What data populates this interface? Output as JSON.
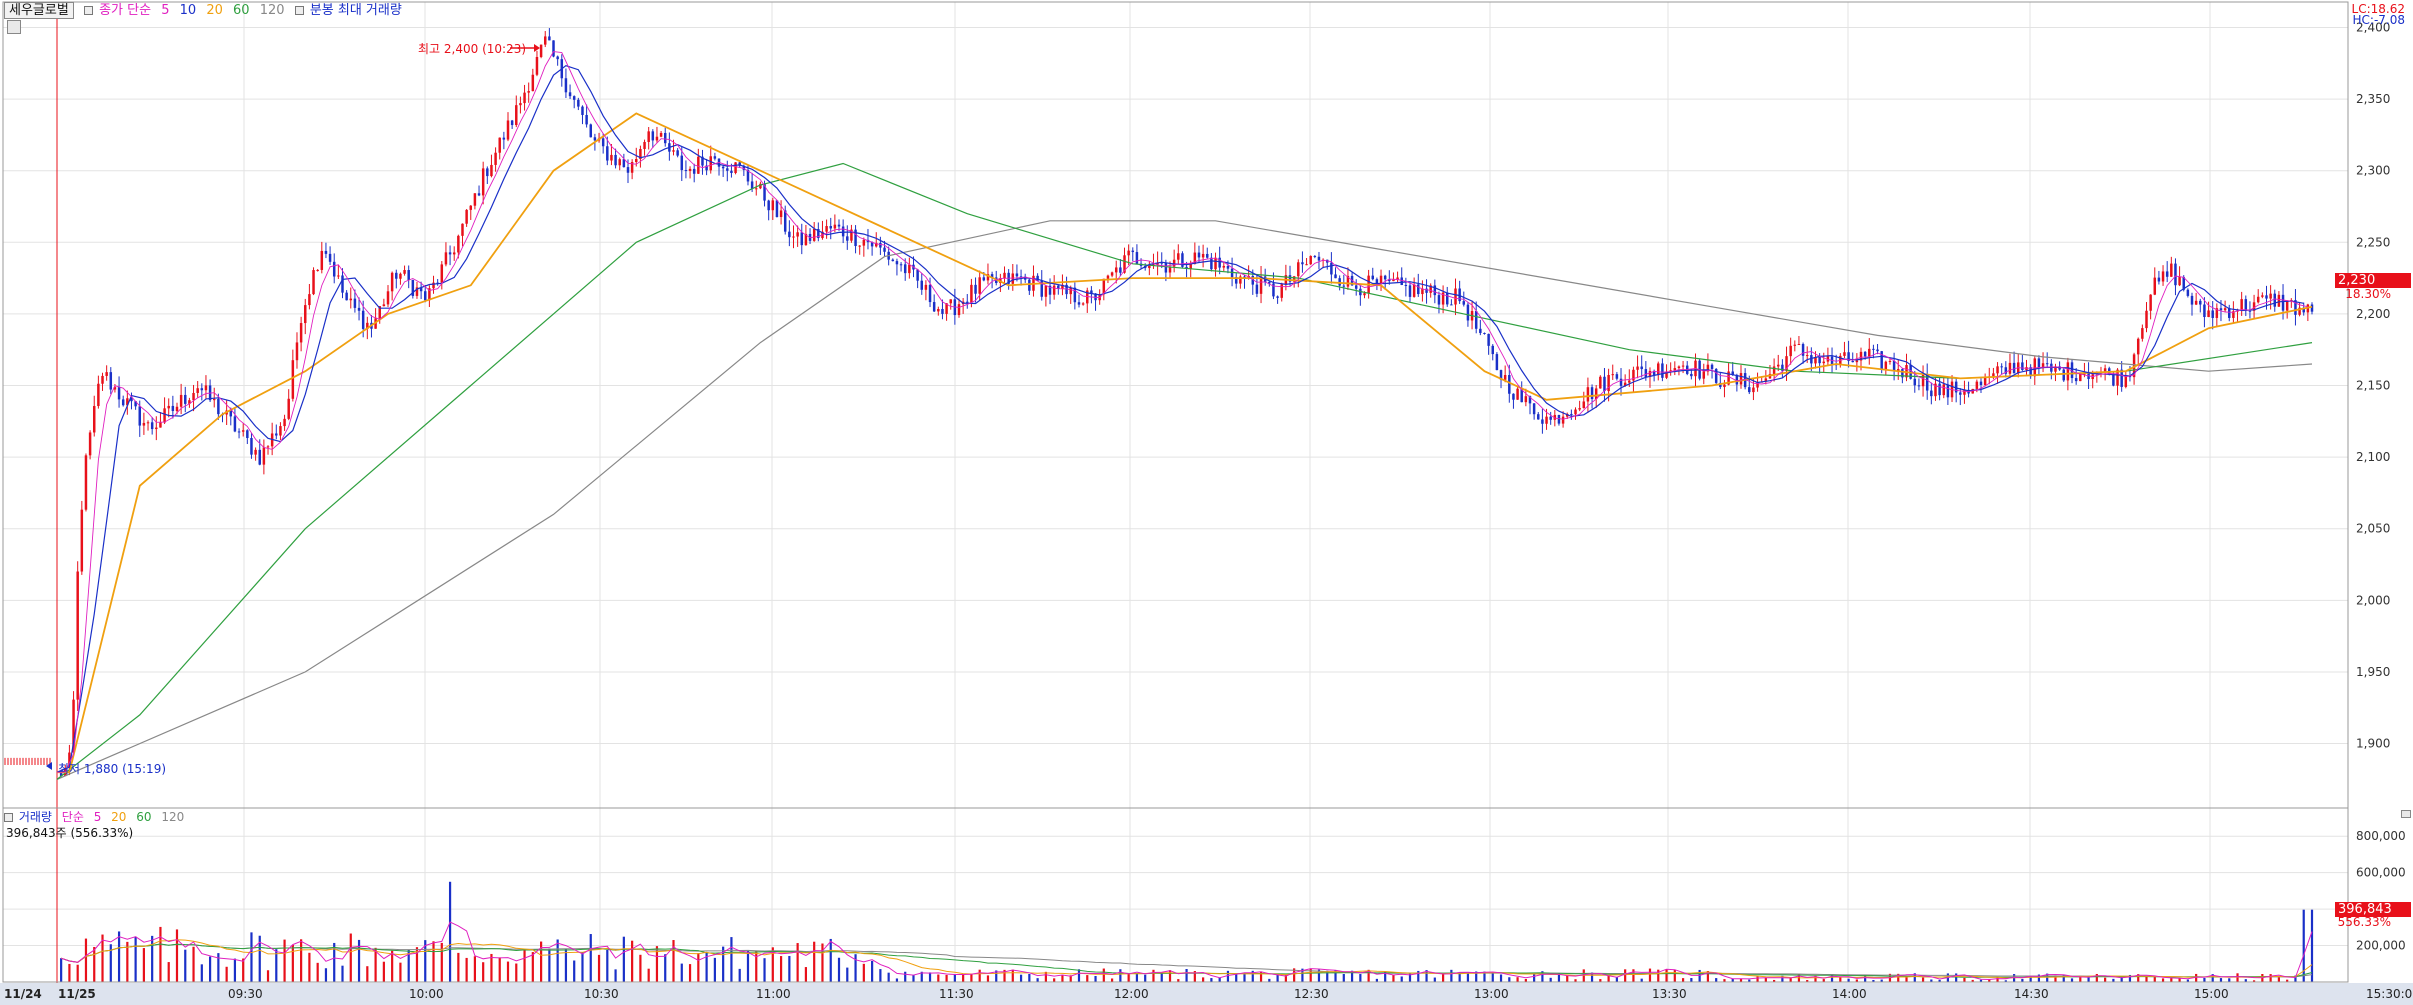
{
  "legend_top": {
    "stock_name": "세우글로벌",
    "ma_prefix": "종가 단순",
    "ma_periods": [
      "5",
      "10",
      "20",
      "60",
      "120"
    ],
    "extra": "분봉 최대 거래량"
  },
  "legend_bottom": {
    "title": "거래량",
    "ma_prefix": "단순",
    "ma_periods": [
      "5",
      "20",
      "60",
      "120"
    ],
    "current": "396,843주 (556.33%)"
  },
  "top_right": {
    "lc": "LC:18.62",
    "hc": "HC:-7.08"
  },
  "annotations": {
    "high_label": "최고 2,400 (10:23)",
    "low_label": "최저 1,880 (15:19)"
  },
  "price_badge": {
    "price": "2,230",
    "pct": "18.30%"
  },
  "volume_badge": {
    "volume": "396,843",
    "pct": "556.33%"
  },
  "colors": {
    "up": "#e8101a",
    "down": "#1a30c8",
    "ma5": "#e020c0",
    "ma10": "#1a30c8",
    "ma20": "#f0a010",
    "ma60": "#30a040",
    "ma120": "#888888"
  },
  "chart_data": [
    {
      "type": "candlestick",
      "title": "",
      "x_ticks": [
        "11/24",
        "11/25",
        "09:30",
        "10:00",
        "10:30",
        "11:00",
        "11:30",
        "12:00",
        "12:30",
        "13:00",
        "13:30",
        "14:00",
        "14:30",
        "15:00",
        "15:30:00"
      ],
      "y_ticks": [
        "2,400",
        "2,350",
        "2,300",
        "2,250",
        "2,200",
        "2,150",
        "2,100",
        "2,050",
        "2,000",
        "1,950",
        "1,900"
      ],
      "ylim": [
        1855,
        2415
      ],
      "high": 2400,
      "low": 1880,
      "last": 2230,
      "series_approx": {
        "ma5": [
          [
            0,
            1880
          ],
          [
            3,
            1900
          ],
          [
            10,
            2050
          ],
          [
            20,
            2140
          ],
          [
            40,
            2130
          ],
          [
            60,
            2200
          ],
          [
            75,
            2260
          ],
          [
            85,
            2200
          ],
          [
            100,
            2280
          ],
          [
            115,
            2370
          ],
          [
            130,
            2320
          ],
          [
            150,
            2300
          ],
          [
            170,
            2260
          ],
          [
            200,
            2210
          ],
          [
            230,
            2220
          ],
          [
            260,
            2225
          ],
          [
            290,
            2230
          ],
          [
            320,
            2215
          ],
          [
            345,
            2140
          ],
          [
            360,
            2150
          ],
          [
            400,
            2160
          ],
          [
            430,
            2170
          ],
          [
            460,
            2150
          ],
          [
            500,
            2165
          ],
          [
            520,
            2230
          ],
          [
            545,
            2200
          ]
        ],
        "ma20": [
          [
            0,
            1880
          ],
          [
            3,
            1880
          ],
          [
            20,
            2080
          ],
          [
            40,
            2130
          ],
          [
            60,
            2160
          ],
          [
            80,
            2200
          ],
          [
            100,
            2220
          ],
          [
            120,
            2300
          ],
          [
            140,
            2340
          ],
          [
            170,
            2300
          ],
          [
            200,
            2260
          ],
          [
            230,
            2220
          ],
          [
            260,
            2225
          ],
          [
            290,
            2225
          ],
          [
            320,
            2220
          ],
          [
            345,
            2160
          ],
          [
            360,
            2140
          ],
          [
            400,
            2150
          ],
          [
            430,
            2165
          ],
          [
            460,
            2155
          ],
          [
            500,
            2160
          ],
          [
            520,
            2190
          ],
          [
            545,
            2205
          ]
        ],
        "ma60": [
          [
            0,
            1875
          ],
          [
            20,
            1920
          ],
          [
            60,
            2050
          ],
          [
            100,
            2150
          ],
          [
            140,
            2250
          ],
          [
            170,
            2290
          ],
          [
            190,
            2305
          ],
          [
            220,
            2270
          ],
          [
            260,
            2235
          ],
          [
            300,
            2225
          ],
          [
            340,
            2200
          ],
          [
            380,
            2175
          ],
          [
            420,
            2160
          ],
          [
            460,
            2155
          ],
          [
            500,
            2160
          ],
          [
            545,
            2180
          ]
        ],
        "ma120": [
          [
            0,
            1875
          ],
          [
            60,
            1950
          ],
          [
            120,
            2060
          ],
          [
            170,
            2180
          ],
          [
            200,
            2240
          ],
          [
            240,
            2265
          ],
          [
            280,
            2265
          ],
          [
            320,
            2245
          ],
          [
            360,
            2225
          ],
          [
            400,
            2205
          ],
          [
            440,
            2185
          ],
          [
            480,
            2170
          ],
          [
            520,
            2160
          ],
          [
            545,
            2165
          ]
        ]
      }
    },
    {
      "type": "bar",
      "title": "",
      "y_ticks": [
        "800,000",
        "600,000",
        "400,000",
        "200,000"
      ],
      "ylim": [
        0,
        900000
      ],
      "last": 396843
    }
  ]
}
